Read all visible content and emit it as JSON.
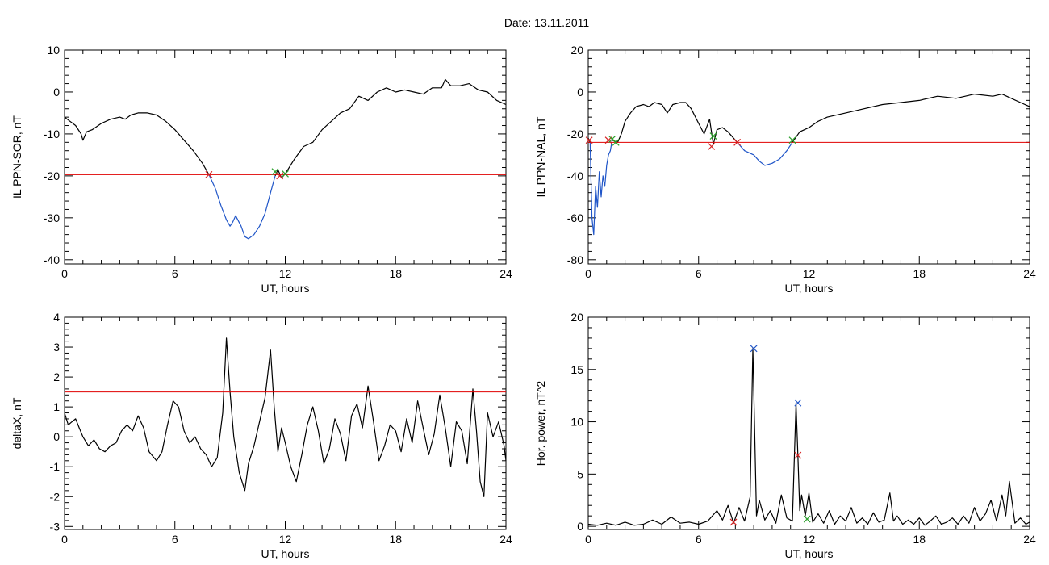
{
  "title": "Date:  13.11.2011",
  "chart_data": [
    {
      "type": "line",
      "xlabel": "UT, hours",
      "ylabel": "IL PPN-SOR, nT",
      "xlim": [
        0,
        24
      ],
      "ylim": [
        -41,
        10
      ],
      "xticks": [
        0,
        6,
        12,
        18,
        24
      ],
      "yticks": [
        -40,
        -30,
        -20,
        -10,
        0,
        10
      ],
      "threshold": -19.7,
      "series": [
        {
          "color": "#000000",
          "x": [
            0,
            0.3,
            0.6,
            0.9,
            1.0,
            1.2,
            1.5,
            2.0,
            2.5,
            3.0,
            3.3,
            3.6,
            4.0,
            4.5,
            5.0,
            5.5,
            6.0,
            6.5,
            7.0,
            7.5,
            7.85
          ],
          "y": [
            -6,
            -7,
            -8,
            -10,
            -11.5,
            -9.5,
            -9,
            -7.5,
            -6.5,
            -6,
            -6.5,
            -5.5,
            -5,
            -5,
            -5.5,
            -7,
            -9,
            -11.5,
            -14,
            -17,
            -19.7
          ]
        },
        {
          "color": "#1f55c8",
          "x": [
            7.85,
            8.2,
            8.5,
            8.8,
            9.0,
            9.15,
            9.3,
            9.6,
            9.8,
            10.0,
            10.3,
            10.6,
            10.9,
            11.2,
            11.45
          ],
          "y": [
            -19.7,
            -23,
            -27,
            -30.5,
            -32,
            -31,
            -29.5,
            -32,
            -34.5,
            -35,
            -34,
            -32,
            -29,
            -24,
            -20
          ]
        },
        {
          "color": "#000000",
          "x": [
            11.45,
            11.6,
            11.8,
            12.0,
            12.5,
            13.0,
            13.5,
            14.0,
            14.5,
            15.0,
            15.5,
            16.0,
            16.5,
            17.0,
            17.5,
            18.0,
            18.5,
            19.0,
            19.5,
            20.0,
            20.5,
            20.7,
            21.0,
            21.5,
            22.0,
            22.5,
            23.0,
            23.5,
            24.0
          ],
          "y": [
            -20,
            -18.5,
            -20.5,
            -19.5,
            -16,
            -13,
            -12,
            -9,
            -7,
            -5,
            -4,
            -1,
            -2,
            0,
            1,
            0,
            0.5,
            0,
            -0.5,
            1,
            1,
            3,
            1.5,
            1.5,
            2,
            0.5,
            0,
            -2,
            -3
          ]
        }
      ],
      "markers": [
        {
          "x": 7.85,
          "y": -19.7,
          "color": "#d62020"
        },
        {
          "x": 11.45,
          "y": -19.0,
          "color": "#2ca02c"
        },
        {
          "x": 11.7,
          "y": -20.0,
          "color": "#d62020"
        },
        {
          "x": 12.0,
          "y": -19.5,
          "color": "#2ca02c"
        }
      ]
    },
    {
      "type": "line",
      "xlabel": "UT, hours",
      "ylabel": "IL PPN-NAL, nT",
      "xlim": [
        0,
        24
      ],
      "ylim": [
        -82,
        20
      ],
      "xticks": [
        0,
        6,
        12,
        18,
        24
      ],
      "yticks": [
        -80,
        -60,
        -40,
        -20,
        0,
        20
      ],
      "threshold": -24,
      "series": [
        {
          "color": "#000000",
          "x": [
            0,
            0.1
          ],
          "y": [
            -22,
            -24
          ]
        },
        {
          "color": "#1f55c8",
          "x": [
            0.1,
            0.2,
            0.3,
            0.4,
            0.5,
            0.6,
            0.7,
            0.8,
            0.9,
            1.0,
            1.1,
            1.2,
            1.3
          ],
          "y": [
            -24,
            -60,
            -68,
            -45,
            -55,
            -38,
            -50,
            -40,
            -45,
            -35,
            -30,
            -28,
            -23
          ]
        },
        {
          "color": "#000000",
          "x": [
            1.3,
            1.6,
            1.8,
            2.0,
            2.3,
            2.6,
            3.0,
            3.3,
            3.6,
            4.0,
            4.3,
            4.6,
            5.0,
            5.3,
            5.6,
            6.0,
            6.3,
            6.6,
            6.8,
            7.0,
            7.3,
            7.6,
            8.1
          ],
          "y": [
            -23,
            -24,
            -20,
            -14,
            -10,
            -7,
            -6,
            -7,
            -5,
            -6,
            -10,
            -6,
            -5,
            -5,
            -8,
            -15,
            -20,
            -13,
            -25,
            -18,
            -17,
            -19,
            -24
          ]
        },
        {
          "color": "#1f55c8",
          "x": [
            8.1,
            8.5,
            9.0,
            9.3,
            9.6,
            10.0,
            10.4,
            10.8,
            11.1
          ],
          "y": [
            -24,
            -28,
            -30,
            -33,
            -35,
            -34,
            -32,
            -28,
            -24
          ]
        },
        {
          "color": "#000000",
          "x": [
            11.1,
            11.5,
            12.0,
            12.5,
            13.0,
            14.0,
            15.0,
            16.0,
            17.0,
            18.0,
            19.0,
            20.0,
            21.0,
            22.0,
            22.5,
            23.0,
            23.5,
            24.0
          ],
          "y": [
            -24,
            -19,
            -17,
            -14,
            -12,
            -10,
            -8,
            -6,
            -5,
            -4,
            -2,
            -3,
            -1,
            -2,
            -1,
            -3,
            -5,
            -7
          ]
        }
      ],
      "markers": [
        {
          "x": 0.05,
          "y": -23,
          "color": "#d62020"
        },
        {
          "x": 1.1,
          "y": -23,
          "color": "#d62020"
        },
        {
          "x": 1.3,
          "y": -22.5,
          "color": "#2ca02c"
        },
        {
          "x": 1.5,
          "y": -24,
          "color": "#2ca02c"
        },
        {
          "x": 6.7,
          "y": -26,
          "color": "#d62020"
        },
        {
          "x": 6.8,
          "y": -21,
          "color": "#2ca02c"
        },
        {
          "x": 8.1,
          "y": -24,
          "color": "#d62020"
        },
        {
          "x": 11.1,
          "y": -23,
          "color": "#2ca02c"
        }
      ]
    },
    {
      "type": "line",
      "xlabel": "UT, hours",
      "ylabel": "deltaX, nT",
      "xlim": [
        0,
        24
      ],
      "ylim": [
        -3.1,
        4
      ],
      "xticks": [
        0,
        6,
        12,
        18,
        24
      ],
      "yticks": [
        -3,
        -2,
        -1,
        0,
        1,
        2,
        3,
        4
      ],
      "threshold": 1.5,
      "series": [
        {
          "color": "#000000",
          "x": [
            0,
            0.2,
            0.4,
            0.6,
            0.8,
            1.0,
            1.3,
            1.6,
            1.9,
            2.2,
            2.5,
            2.8,
            3.1,
            3.4,
            3.7,
            4.0,
            4.3,
            4.6,
            5.0,
            5.3,
            5.6,
            5.9,
            6.2,
            6.5,
            6.8,
            7.1,
            7.4,
            7.7,
            8.0,
            8.3,
            8.6,
            8.8,
            9.0,
            9.2,
            9.5,
            9.8,
            10.0,
            10.3,
            10.6,
            10.9,
            11.2,
            11.4,
            11.6,
            11.8,
            12.0,
            12.3,
            12.6,
            12.9,
            13.2,
            13.5,
            13.8,
            14.1,
            14.4,
            14.7,
            15.0,
            15.3,
            15.6,
            15.9,
            16.2,
            16.5,
            16.8,
            17.1,
            17.4,
            17.7,
            18.0,
            18.3,
            18.6,
            18.9,
            19.2,
            19.5,
            19.8,
            20.1,
            20.4,
            20.7,
            21.0,
            21.3,
            21.6,
            21.9,
            22.2,
            22.4,
            22.6,
            22.8,
            23.0,
            23.3,
            23.6,
            23.9,
            24.0
          ],
          "y": [
            0.8,
            0.4,
            0.5,
            0.6,
            0.3,
            0.0,
            -0.3,
            -0.1,
            -0.4,
            -0.5,
            -0.3,
            -0.2,
            0.2,
            0.4,
            0.2,
            0.7,
            0.3,
            -0.5,
            -0.8,
            -0.5,
            0.4,
            1.2,
            1.0,
            0.2,
            -0.2,
            0.0,
            -0.4,
            -0.6,
            -1.0,
            -0.7,
            0.8,
            3.3,
            1.5,
            0.0,
            -1.2,
            -1.8,
            -0.9,
            -0.3,
            0.5,
            1.3,
            2.9,
            1.0,
            -0.5,
            0.3,
            -0.2,
            -1.0,
            -1.5,
            -0.6,
            0.4,
            1.0,
            0.2,
            -0.9,
            -0.4,
            0.6,
            0.1,
            -0.8,
            0.7,
            1.1,
            0.3,
            1.7,
            0.5,
            -0.8,
            -0.3,
            0.4,
            0.2,
            -0.5,
            0.6,
            -0.2,
            1.2,
            0.3,
            -0.6,
            0.1,
            1.4,
            0.3,
            -1.0,
            0.5,
            0.2,
            -0.9,
            1.6,
            0.2,
            -1.5,
            -2.0,
            0.8,
            0.0,
            0.5,
            -0.3,
            -0.8
          ]
        }
      ],
      "markers": []
    },
    {
      "type": "line",
      "xlabel": "UT, hours",
      "ylabel": "Hor. power, nT^2",
      "xlim": [
        0,
        24
      ],
      "ylim": [
        -0.3,
        20
      ],
      "xticks": [
        0,
        6,
        12,
        18,
        24
      ],
      "yticks": [
        0,
        5,
        10,
        15,
        20
      ],
      "threshold": null,
      "series": [
        {
          "color": "#000000",
          "x": [
            0,
            0.5,
            1.0,
            1.5,
            2.0,
            2.5,
            3.0,
            3.5,
            4.0,
            4.5,
            5.0,
            5.5,
            6.0,
            6.5,
            7.0,
            7.3,
            7.6,
            7.9,
            8.2,
            8.5,
            8.8,
            8.95,
            9.05,
            9.15,
            9.3,
            9.6,
            9.9,
            10.2,
            10.5,
            10.8,
            11.1,
            11.3,
            11.4,
            11.5,
            11.6,
            11.8,
            12.0,
            12.2,
            12.5,
            12.8,
            13.1,
            13.4,
            13.7,
            14.0,
            14.3,
            14.6,
            14.9,
            15.2,
            15.5,
            15.8,
            16.1,
            16.4,
            16.6,
            16.8,
            17.1,
            17.4,
            17.7,
            18.0,
            18.3,
            18.6,
            18.9,
            19.2,
            19.5,
            19.8,
            20.1,
            20.4,
            20.7,
            21.0,
            21.3,
            21.6,
            21.9,
            22.2,
            22.5,
            22.7,
            22.9,
            23.2,
            23.5,
            23.8,
            24.0
          ],
          "y": [
            0.2,
            0.1,
            0.3,
            0.1,
            0.4,
            0.1,
            0.2,
            0.6,
            0.2,
            0.9,
            0.3,
            0.4,
            0.2,
            0.5,
            1.5,
            0.6,
            2.0,
            0.3,
            1.8,
            0.5,
            2.8,
            17.0,
            9.0,
            1.0,
            2.5,
            0.6,
            1.5,
            0.3,
            3.0,
            0.8,
            0.5,
            11.8,
            6.8,
            1.5,
            3.0,
            1.0,
            3.2,
            0.4,
            1.2,
            0.3,
            1.5,
            0.2,
            1.0,
            0.5,
            1.8,
            0.3,
            0.8,
            0.2,
            1.3,
            0.4,
            0.6,
            3.2,
            0.5,
            1.0,
            0.2,
            0.6,
            0.2,
            0.8,
            0.1,
            0.5,
            1.0,
            0.2,
            0.4,
            0.8,
            0.2,
            1.0,
            0.3,
            1.8,
            0.5,
            1.2,
            2.5,
            0.5,
            3.0,
            1.0,
            4.3,
            0.3,
            0.8,
            0.2,
            0.4
          ]
        }
      ],
      "markers": [
        {
          "x": 9.0,
          "y": 17.0,
          "color": "#1f55c8"
        },
        {
          "x": 11.4,
          "y": 11.8,
          "color": "#1f55c8"
        },
        {
          "x": 11.4,
          "y": 6.8,
          "color": "#d62020"
        },
        {
          "x": 7.9,
          "y": 0.4,
          "color": "#d62020"
        },
        {
          "x": 11.9,
          "y": 0.7,
          "color": "#2ca02c"
        }
      ]
    }
  ]
}
